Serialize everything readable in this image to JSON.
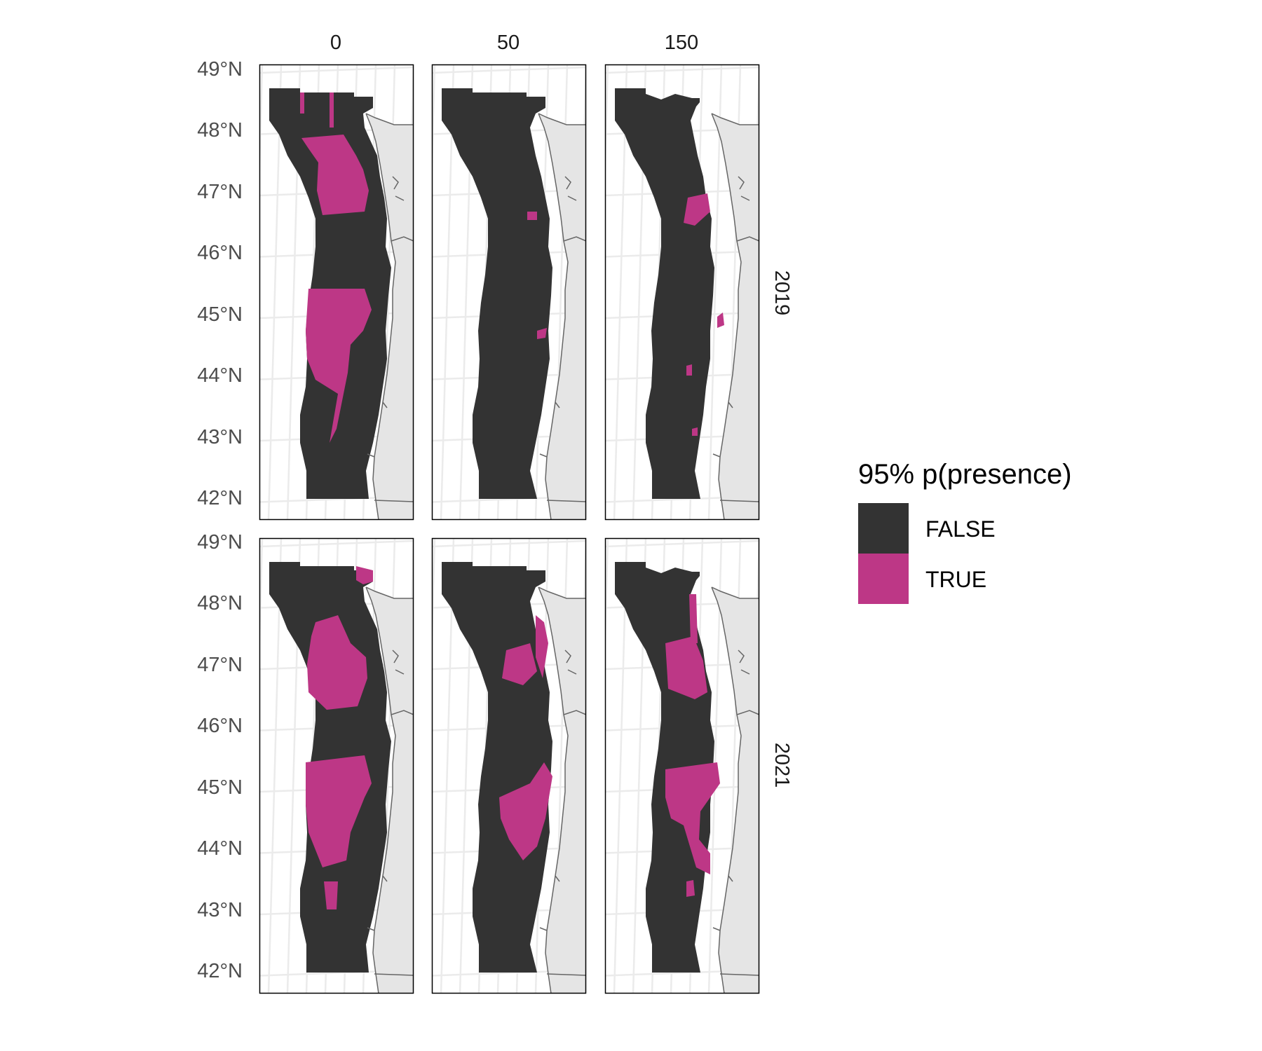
{
  "columns": [
    "0",
    "50",
    "150"
  ],
  "rows": [
    "2019",
    "2021"
  ],
  "lat_labels": [
    "49°N",
    "48°N",
    "47°N",
    "46°N",
    "45°N",
    "44°N",
    "43°N",
    "42°N"
  ],
  "legend": {
    "title": "95% p(presence)",
    "items": [
      {
        "label": "FALSE",
        "color": "#333333"
      },
      {
        "label": "TRUE",
        "color": "#bd3786"
      }
    ]
  },
  "colors": {
    "false": "#333333",
    "true": "#bd3786",
    "land": "#e5e5e5",
    "grid": "#ebebeb",
    "coastline": "#666666",
    "border": "#000000"
  }
}
